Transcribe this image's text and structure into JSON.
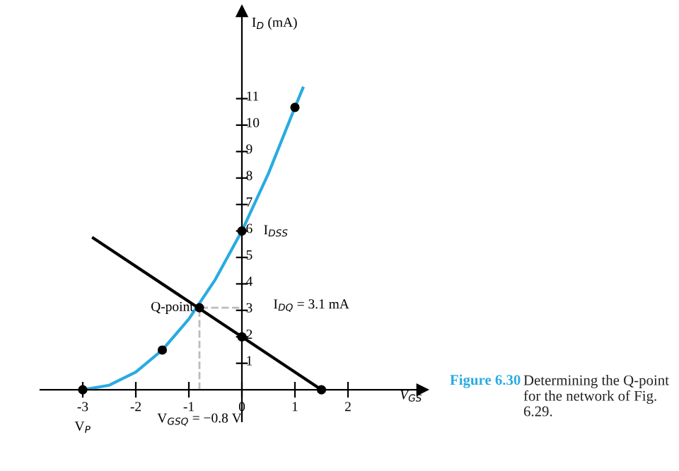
{
  "chart_data": {
    "type": "line",
    "xlabel": "V$_{GS}$",
    "ylabel": "I$_{D}$ (mA)",
    "xlim": [
      -3.8,
      3.4
    ],
    "ylim": [
      -1.2,
      14.3
    ],
    "xticks": [
      -3,
      -2,
      -1,
      0,
      1,
      2
    ],
    "yticks": [
      1,
      2,
      3,
      4,
      5,
      6,
      7,
      8,
      9,
      10,
      11
    ],
    "grid": false,
    "series": [
      {
        "color": "#29abe2",
        "x": [
          -3,
          -2.5,
          -2,
          -1.5,
          -1,
          -0.5,
          0,
          0.5,
          1,
          1.15
        ],
        "values": [
          0,
          0.17,
          0.67,
          1.5,
          2.67,
          4.17,
          6,
          8.17,
          10.67,
          11.4
        ]
      },
      {
        "color": "#000000",
        "x": [
          -2.8,
          1.5
        ],
        "values": [
          5.73,
          0
        ]
      },
      {
        "color": "#bbbbbb",
        "line_style": "dashed",
        "x": [
          -0.8,
          -0.8,
          0
        ],
        "values": [
          0,
          3.1,
          3.1
        ]
      },
      {
        "type": "scatter",
        "color": "#000000",
        "marker": "circle",
        "x": [
          -3,
          -1.5,
          -0.8,
          0,
          1,
          0,
          1.5
        ],
        "values": [
          0,
          1.5,
          3.1,
          6,
          10.67,
          2,
          0
        ]
      }
    ],
    "annotations": [
      {
        "text": "Q-point",
        "x": -0.8,
        "y": 3.1
      },
      {
        "text": "I$_{DSS}$",
        "x": 0,
        "y": 6
      },
      {
        "text": "I$_{DQ}$ = 3.1 mA",
        "x": 0,
        "y": 3.1
      },
      {
        "text": "V$_{P}$",
        "x": -3,
        "y": 0
      },
      {
        "text": "V$_{GSQ}$ = −0.8 V",
        "x": -0.8,
        "y": 0
      },
      "Figure 6.30",
      "Determining the Q-point for the network of Fig. 6.29."
    ]
  }
}
